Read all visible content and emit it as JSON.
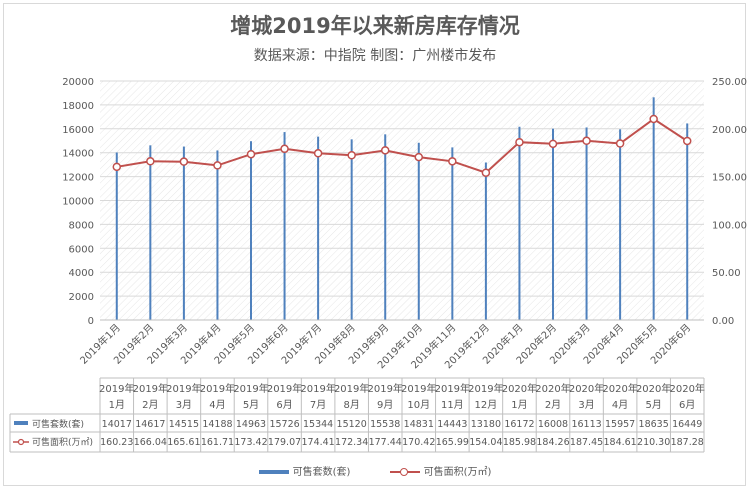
{
  "header": {
    "title": "增城2019年以来新房库存情况",
    "subtitle": "数据来源：中指院 制图：广州楼市发布"
  },
  "colors": {
    "bar": "#4f81bd",
    "line": "#c0504d",
    "grid": "#d9d9d9"
  },
  "chart_data": {
    "type": "bar",
    "categories": [
      "2019年1月",
      "2019年2月",
      "2019年3月",
      "2019年4月",
      "2019年5月",
      "2019年6月",
      "2019年7月",
      "2019年8月",
      "2019年9月",
      "2019年10月",
      "2019年11月",
      "2019年12月",
      "2020年1月",
      "2020年2月",
      "2020年3月",
      "2020年4月",
      "2020年5月",
      "2020年6月"
    ],
    "table_header_lines": [
      [
        "2019年",
        "1月"
      ],
      [
        "2019年",
        "2月"
      ],
      [
        "2019年",
        "3月"
      ],
      [
        "2019年",
        "4月"
      ],
      [
        "2019年",
        "5月"
      ],
      [
        "2019年",
        "6月"
      ],
      [
        "2019年",
        "7月"
      ],
      [
        "2019年",
        "8月"
      ],
      [
        "2019年",
        "9月"
      ],
      [
        "2019年",
        "10月"
      ],
      [
        "2019年",
        "11月"
      ],
      [
        "2019年",
        "12月"
      ],
      [
        "2020年",
        "1月"
      ],
      [
        "2020年",
        "2月"
      ],
      [
        "2020年",
        "3月"
      ],
      [
        "2020年",
        "4月"
      ],
      [
        "2020年",
        "5月"
      ],
      [
        "2020年",
        "6月"
      ]
    ],
    "series": [
      {
        "name": "可售套数(套)",
        "type": "bar",
        "axis": "left",
        "values": [
          14017,
          14617,
          14515,
          14188,
          14963,
          15726,
          15344,
          15120,
          15538,
          14831,
          14443,
          13180,
          16172,
          16008,
          16113,
          15957,
          18635,
          16449
        ]
      },
      {
        "name": "可售面积(万㎡)",
        "type": "line",
        "axis": "right",
        "values": [
          160.23,
          166.04,
          165.61,
          161.71,
          173.42,
          179.07,
          174.41,
          172.34,
          177.44,
          170.42,
          165.99,
          154.04,
          185.98,
          184.26,
          187.45,
          184.61,
          210.3,
          187.28
        ],
        "labels": [
          "160.23",
          "166.04",
          "165.61",
          "161.71",
          "173.42",
          "179.07",
          "174.41",
          "172.34",
          "177.44",
          "170.42",
          "165.99",
          "154.04",
          "185.98",
          "184.26",
          "187.45",
          "184.61",
          "210.30",
          "187.28"
        ]
      }
    ],
    "y_left": {
      "min": 0,
      "max": 20000,
      "ticks": [
        "0",
        "2000",
        "4000",
        "6000",
        "8000",
        "10000",
        "12000",
        "14000",
        "16000",
        "18000",
        "20000"
      ]
    },
    "y_right": {
      "min": 0,
      "max": 250,
      "ticks": [
        "0.00",
        "50.00",
        "100.00",
        "150.00",
        "200.00",
        "250.00"
      ]
    },
    "grid": true,
    "legend": "bottom"
  }
}
